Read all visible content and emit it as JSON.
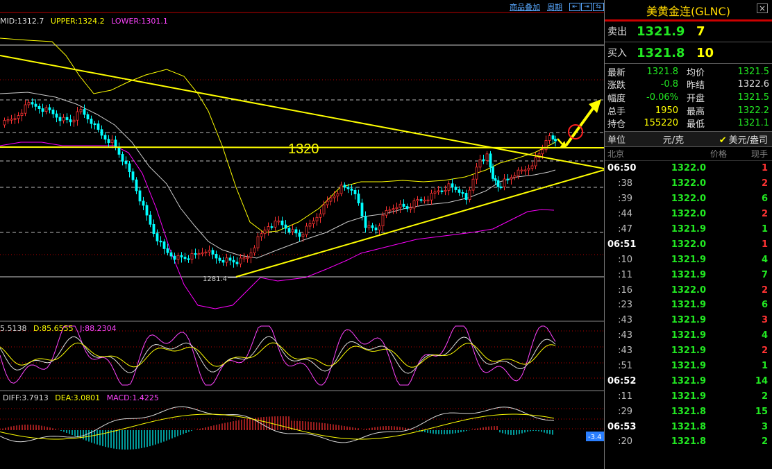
{
  "toolbar": {
    "overlay_label": "商品叠加",
    "period_label": "周期"
  },
  "indicators": {
    "boll": {
      "mid": "MID:1312.7",
      "upper": "UPPER:1324.2",
      "lower": "LOWER:1301.1"
    },
    "kdj": {
      "k": "5.5138",
      "d": "D:85.6555",
      "j": "J:88.2304"
    },
    "macd": {
      "diff": "DIFF:3.7913",
      "dea": "DEA:3.0801",
      "macd": "MACD:1.4225"
    }
  },
  "annotations": {
    "level_label": "1320",
    "low_label": "1281.4",
    "macd_tag": "-3.4"
  },
  "colors": {
    "up": "#ff3333",
    "down": "#00ffff",
    "mid": "#cccccc",
    "upper": "#ffff00",
    "lower": "#ff00ff",
    "trend": "#ffff00"
  },
  "quote": {
    "title": "美黄金连(GLNC)",
    "sell": {
      "label": "卖出",
      "price": "1321.9",
      "qty": "7"
    },
    "buy": {
      "label": "买入",
      "price": "1321.8",
      "qty": "10"
    },
    "stats": [
      {
        "k": "最新",
        "v": "1321.8",
        "vc": "green",
        "k2": "均价",
        "v2": "1321.5",
        "v2c": "green"
      },
      {
        "k": "涨跌",
        "v": "-0.8",
        "vc": "green",
        "k2": "昨结",
        "v2": "1322.6",
        "v2c": "white"
      },
      {
        "k": "幅度",
        "v": "-0.06%",
        "vc": "green",
        "k2": "开盘",
        "v2": "1321.5",
        "v2c": "green"
      },
      {
        "k": "总手",
        "v": "1950",
        "vc": "yellow",
        "k2": "最高",
        "v2": "1322.2",
        "v2c": "green"
      },
      {
        "k": "持仓",
        "v": "155220",
        "vc": "yellow",
        "k2": "最低",
        "v2": "1321.1",
        "v2c": "green"
      }
    ],
    "unit": {
      "label": "单位",
      "value": "元/克",
      "selected": "美元/盎司"
    },
    "tick_header": {
      "time": "北京",
      "price": "价格",
      "qty": "现手"
    },
    "ticks": [
      {
        "t": "06:50",
        "bold": true,
        "p": "1322.0",
        "q": "1",
        "qc": "red"
      },
      {
        "t": ":38",
        "bold": false,
        "p": "1322.0",
        "q": "2",
        "qc": "red"
      },
      {
        "t": ":39",
        "bold": false,
        "p": "1322.0",
        "q": "6",
        "qc": "green"
      },
      {
        "t": ":44",
        "bold": false,
        "p": "1322.0",
        "q": "2",
        "qc": "red"
      },
      {
        "t": ":47",
        "bold": false,
        "p": "1321.9",
        "q": "1",
        "qc": "green"
      },
      {
        "t": "06:51",
        "bold": true,
        "p": "1322.0",
        "q": "1",
        "qc": "red"
      },
      {
        "t": ":10",
        "bold": false,
        "p": "1321.9",
        "q": "4",
        "qc": "green"
      },
      {
        "t": ":11",
        "bold": false,
        "p": "1321.9",
        "q": "7",
        "qc": "green"
      },
      {
        "t": ":16",
        "bold": false,
        "p": "1322.0",
        "q": "2",
        "qc": "red"
      },
      {
        "t": ":23",
        "bold": false,
        "p": "1321.9",
        "q": "6",
        "qc": "green"
      },
      {
        "t": ":43",
        "bold": false,
        "p": "1321.9",
        "q": "3",
        "qc": "red"
      },
      {
        "t": ":43",
        "bold": false,
        "p": "1321.9",
        "q": "4",
        "qc": "green"
      },
      {
        "t": ":43",
        "bold": false,
        "p": "1321.9",
        "q": "2",
        "qc": "red"
      },
      {
        "t": ":51",
        "bold": false,
        "p": "1321.9",
        "q": "1",
        "qc": "green"
      },
      {
        "t": "06:52",
        "bold": true,
        "p": "1321.9",
        "q": "14",
        "qc": "green"
      },
      {
        "t": ":11",
        "bold": false,
        "p": "1321.9",
        "q": "2",
        "qc": "green"
      },
      {
        "t": ":29",
        "bold": false,
        "p": "1321.8",
        "q": "15",
        "qc": "green"
      },
      {
        "t": "06:53",
        "bold": true,
        "p": "1321.8",
        "q": "3",
        "qc": "green"
      },
      {
        "t": ":20",
        "bold": false,
        "p": "1321.8",
        "q": "2",
        "qc": "green"
      }
    ]
  }
}
